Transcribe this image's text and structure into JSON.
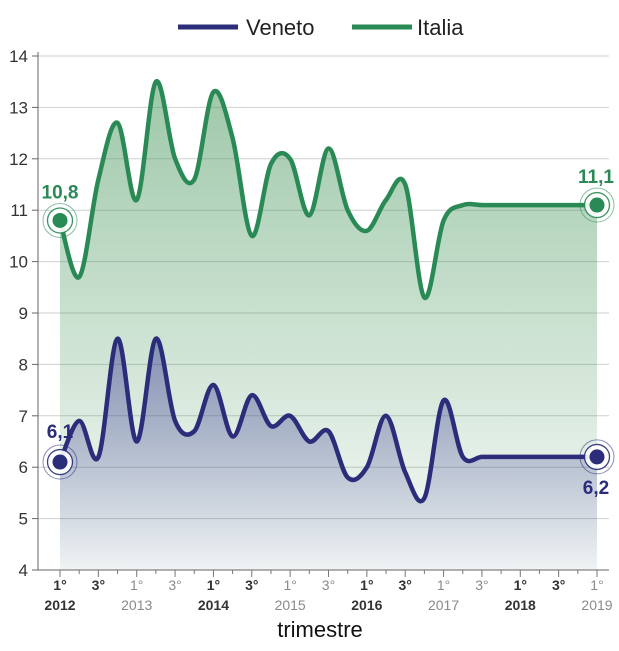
{
  "chart_data": {
    "type": "area",
    "title": "",
    "xlabel": "trimestre",
    "ylabel": "",
    "ylim": [
      4,
      14
    ],
    "yticks": [
      4,
      5,
      6,
      7,
      8,
      9,
      10,
      11,
      12,
      13,
      14
    ],
    "grid": true,
    "legend_position": "top",
    "x_quarters": [
      "2012 Q1",
      "2012 Q2",
      "2012 Q3",
      "2012 Q4",
      "2013 Q1",
      "2013 Q2",
      "2013 Q3",
      "2013 Q4",
      "2014 Q1",
      "2014 Q2",
      "2014 Q3",
      "2014 Q4",
      "2015 Q1",
      "2015 Q2",
      "2015 Q3",
      "2015 Q4",
      "2016 Q1",
      "2016 Q2",
      "2016 Q3",
      "2016 Q4",
      "2017 Q1",
      "2017 Q2",
      "2017 Q3",
      "2017 Q4",
      "2018 Q1",
      "2018 Q2",
      "2018 Q3",
      "2018 Q4",
      "2019 Q1"
    ],
    "x_tick_labels": [
      {
        "quarter_index": 0,
        "label": "1°",
        "year": "2012",
        "muted": false
      },
      {
        "quarter_index": 2,
        "label": "3°",
        "year": "",
        "muted": false
      },
      {
        "quarter_index": 4,
        "label": "1°",
        "year": "2013",
        "muted": true
      },
      {
        "quarter_index": 6,
        "label": "3°",
        "year": "",
        "muted": true
      },
      {
        "quarter_index": 8,
        "label": "1°",
        "year": "2014",
        "muted": false
      },
      {
        "quarter_index": 10,
        "label": "3°",
        "year": "",
        "muted": false
      },
      {
        "quarter_index": 12,
        "label": "1°",
        "year": "2015",
        "muted": true
      },
      {
        "quarter_index": 14,
        "label": "3°",
        "year": "",
        "muted": true
      },
      {
        "quarter_index": 16,
        "label": "1°",
        "year": "2016",
        "muted": false
      },
      {
        "quarter_index": 18,
        "label": "3°",
        "year": "",
        "muted": false
      },
      {
        "quarter_index": 20,
        "label": "1°",
        "year": "2017",
        "muted": true
      },
      {
        "quarter_index": 22,
        "label": "3°",
        "year": "",
        "muted": true
      },
      {
        "quarter_index": 24,
        "label": "1°",
        "year": "2018",
        "muted": false
      },
      {
        "quarter_index": 26,
        "label": "3°",
        "year": "",
        "muted": false
      },
      {
        "quarter_index": 28,
        "label": "1°",
        "year": "2019",
        "muted": true
      }
    ],
    "series": [
      {
        "name": "Italia",
        "color": "#2a8a55",
        "values": [
          10.8,
          9.7,
          11.6,
          12.7,
          11.2,
          13.5,
          12.0,
          11.6,
          13.3,
          12.4,
          10.5,
          11.9,
          12.0,
          10.9,
          12.2,
          11.0,
          10.6,
          11.2,
          11.5,
          9.3,
          10.8,
          11.1,
          11.1,
          11.1,
          11.1,
          11.1,
          11.1,
          11.1,
          11.1
        ],
        "start_label": "10,8",
        "end_label": "11,1"
      },
      {
        "name": "Veneto",
        "color": "#2b2d7a",
        "values": [
          6.1,
          6.9,
          6.2,
          8.5,
          6.5,
          8.5,
          6.9,
          6.7,
          7.6,
          6.6,
          7.4,
          6.8,
          7.0,
          6.5,
          6.7,
          5.8,
          6.0,
          7.0,
          5.9,
          5.4,
          7.3,
          6.2,
          6.2,
          6.2,
          6.2,
          6.2,
          6.2,
          6.2,
          6.2
        ],
        "start_label": "6,1",
        "end_label": "6,2"
      }
    ]
  }
}
